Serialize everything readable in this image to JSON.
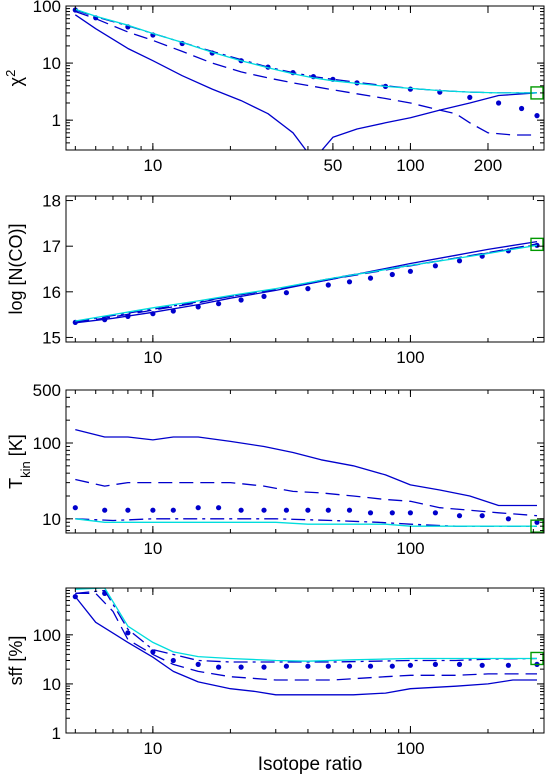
{
  "chart_data": [
    {
      "type": "line",
      "ylabel": "χ²",
      "xscale": "log",
      "yscale": "log",
      "xlim": [
        4.6,
        330
      ],
      "ylim": [
        0.3,
        100
      ],
      "xticks": [
        10,
        50,
        100,
        200
      ],
      "xtick_labels": [
        "10",
        "50",
        "100",
        "200"
      ],
      "yticks": [
        1,
        10,
        100
      ],
      "ytick_labels": [
        "1",
        "10",
        "100"
      ],
      "series": [
        {
          "style": "solid",
          "color": "#0000cc",
          "x": [
            5,
            6,
            8,
            10,
            13,
            17,
            22,
            28,
            35,
            42,
            50,
            62,
            80,
            100,
            130,
            170,
            220,
            310
          ],
          "y": [
            70,
            40,
            18,
            11,
            6,
            3.5,
            2.2,
            1.3,
            0.6,
            0.2,
            0.5,
            0.7,
            0.9,
            1.1,
            1.5,
            2.0,
            2.7,
            3.0
          ]
        },
        {
          "style": "dashed",
          "color": "#0000cc",
          "x": [
            5,
            6,
            8,
            10,
            13,
            17,
            22,
            28,
            35,
            42,
            50,
            62,
            80,
            100,
            130,
            150,
            170,
            200,
            250,
            310
          ],
          "y": [
            80,
            60,
            35,
            25,
            16,
            10,
            7,
            5.5,
            4.5,
            3.9,
            3.4,
            2.9,
            2.4,
            2.0,
            1.5,
            1.3,
            0.9,
            0.6,
            0.55,
            0.55
          ]
        },
        {
          "style": "dotted",
          "color": "#0000cc",
          "x": [
            5,
            6,
            8,
            10,
            13,
            17,
            22,
            28,
            35,
            42,
            50,
            62,
            80,
            100,
            130,
            170,
            220,
            270,
            310
          ],
          "y": [
            85,
            62,
            43,
            31,
            22,
            15,
            11,
            8.5,
            6.8,
            5.8,
            5.2,
            4.5,
            3.9,
            3.5,
            3.1,
            2.5,
            2.0,
            1.6,
            1.2
          ]
        },
        {
          "style": "dashdot",
          "color": "#0000cc",
          "x": [
            5,
            6,
            8,
            10,
            13,
            17,
            22,
            28,
            35,
            42,
            50,
            62,
            80,
            100,
            130,
            170,
            220,
            310
          ],
          "y": [
            85,
            65,
            45,
            33,
            23,
            16,
            11.5,
            8.5,
            6.8,
            5.8,
            5.2,
            4.6,
            4.0,
            3.6,
            3.3,
            3.1,
            3.0,
            3.0
          ]
        },
        {
          "style": "solid",
          "color": "#00dddd",
          "x": [
            5,
            6,
            8,
            10,
            13,
            17,
            22,
            28,
            35,
            42,
            50,
            62,
            80,
            100,
            130,
            170,
            220,
            310
          ],
          "y": [
            88,
            66,
            46,
            33,
            23,
            15.5,
            11,
            8.3,
            6.5,
            5.5,
            4.9,
            4.4,
            3.9,
            3.6,
            3.3,
            3.1,
            3.0,
            3.0
          ]
        }
      ],
      "markers": [
        {
          "x": 310,
          "y": 3.0,
          "shape": "square",
          "color": "#009900"
        }
      ]
    },
    {
      "type": "line",
      "ylabel": "log [N(CO)]",
      "xscale": "log",
      "yscale": "linear",
      "xlim": [
        4.6,
        330
      ],
      "ylim": [
        14.9,
        18.1
      ],
      "xticks": [
        10,
        100
      ],
      "xtick_labels": [
        "10",
        "100"
      ],
      "yticks": [
        15,
        16,
        17,
        18
      ],
      "ytick_labels": [
        "15",
        "16",
        "17",
        "18"
      ],
      "series": [
        {
          "style": "solid",
          "color": "#0000cc",
          "x": [
            5,
            7,
            10,
            15,
            20,
            30,
            50,
            75,
            100,
            150,
            200,
            310
          ],
          "y": [
            15.32,
            15.42,
            15.55,
            15.72,
            15.86,
            16.03,
            16.28,
            16.48,
            16.62,
            16.8,
            16.93,
            17.1
          ]
        },
        {
          "style": "dashed",
          "color": "#0000cc",
          "x": [
            5,
            7,
            10,
            15,
            20,
            30,
            50,
            75,
            100,
            150,
            200,
            310
          ],
          "y": [
            15.33,
            15.45,
            15.6,
            15.76,
            15.9,
            16.05,
            16.28,
            16.45,
            16.57,
            16.74,
            16.86,
            17.05
          ]
        },
        {
          "style": "dotted",
          "color": "#0000cc",
          "x": [
            5,
            6.5,
            8,
            10,
            12,
            15,
            18,
            22,
            27,
            33,
            40,
            48,
            58,
            70,
            85,
            100,
            125,
            155,
            190,
            240,
            310
          ],
          "y": [
            15.33,
            15.39,
            15.46,
            15.52,
            15.58,
            15.67,
            15.74,
            15.82,
            15.9,
            15.98,
            16.07,
            16.15,
            16.22,
            16.3,
            16.38,
            16.45,
            16.57,
            16.68,
            16.78,
            16.9,
            17.02
          ]
        },
        {
          "style": "dashdot",
          "color": "#0000cc",
          "x": [
            5,
            7,
            10,
            15,
            20,
            30,
            50,
            75,
            100,
            150,
            200,
            310
          ],
          "y": [
            15.35,
            15.48,
            15.62,
            15.78,
            15.9,
            16.06,
            16.3,
            16.47,
            16.58,
            16.74,
            16.85,
            17.03
          ]
        },
        {
          "style": "solid",
          "color": "#00dddd",
          "x": [
            5,
            7,
            10,
            15,
            20,
            30,
            50,
            75,
            100,
            150,
            200,
            310
          ],
          "y": [
            15.36,
            15.5,
            15.65,
            15.8,
            15.92,
            16.07,
            16.3,
            16.46,
            16.58,
            16.73,
            16.84,
            17.02
          ]
        }
      ],
      "markers": [
        {
          "x": 310,
          "y": 17.04,
          "shape": "square",
          "color": "#009900"
        }
      ]
    },
    {
      "type": "line",
      "ylabel": "T_kin [K]",
      "xscale": "log",
      "yscale": "log",
      "xlim": [
        4.6,
        330
      ],
      "ylim": [
        6.5,
        500
      ],
      "xticks": [
        10,
        100
      ],
      "xtick_labels": [
        "10",
        "100"
      ],
      "yticks": [
        10,
        100,
        500
      ],
      "ytick_labels": [
        "10",
        "100",
        "500"
      ],
      "series": [
        {
          "style": "solid",
          "color": "#0000cc",
          "x": [
            5,
            6.5,
            8,
            10,
            12,
            15,
            20,
            27,
            35,
            45,
            60,
            80,
            100,
            130,
            170,
            220,
            310
          ],
          "y": [
            150,
            120,
            120,
            110,
            120,
            120,
            105,
            90,
            75,
            60,
            50,
            38,
            28,
            24,
            20,
            15,
            15
          ]
        },
        {
          "style": "dashed",
          "color": "#0000cc",
          "x": [
            5,
            6.5,
            8,
            10,
            15,
            20,
            27,
            35,
            45,
            60,
            80,
            100,
            130,
            170,
            220,
            310
          ],
          "y": [
            33,
            27,
            30,
            30,
            30,
            30,
            27,
            23,
            22,
            20,
            18,
            17,
            14,
            13,
            12,
            11
          ]
        },
        {
          "style": "dotted",
          "color": "#0000cc",
          "x": [
            5,
            6.5,
            8,
            10,
            12,
            15,
            18,
            22,
            27,
            33,
            40,
            48,
            58,
            70,
            85,
            100,
            125,
            155,
            190,
            240,
            310
          ],
          "y": [
            14,
            13,
            13,
            13,
            13,
            14,
            14,
            13,
            13,
            13,
            13,
            13,
            13,
            12,
            12,
            12,
            12,
            11,
            11,
            10,
            9
          ]
        },
        {
          "style": "dashdot",
          "color": "#0000cc",
          "x": [
            5,
            7,
            10,
            15,
            20,
            30,
            50,
            75,
            100,
            150,
            200,
            310
          ],
          "y": [
            10,
            9.5,
            10,
            10,
            10,
            10,
            9.5,
            9,
            8.5,
            8,
            8,
            8
          ]
        },
        {
          "style": "solid",
          "color": "#00dddd",
          "x": [
            5,
            6.5,
            8,
            10,
            15,
            20,
            30,
            40,
            50,
            80,
            100,
            150,
            200,
            310
          ],
          "y": [
            10,
            9,
            9,
            9,
            9,
            9,
            9,
            8.5,
            8.5,
            8.5,
            8,
            8,
            8,
            8
          ]
        }
      ],
      "markers": [
        {
          "x": 310,
          "y": 8,
          "shape": "square",
          "color": "#009900"
        }
      ]
    },
    {
      "type": "line",
      "xlabel": "Isotope ratio",
      "ylabel": "sff [%]",
      "xscale": "log",
      "yscale": "log",
      "xlim": [
        4.6,
        330
      ],
      "ylim": [
        1,
        900
      ],
      "xticks": [
        10,
        100
      ],
      "xtick_labels": [
        "10",
        "100"
      ],
      "yticks": [
        1,
        10,
        100
      ],
      "ytick_labels": [
        "1",
        "10",
        "100"
      ],
      "series": [
        {
          "style": "solid",
          "color": "#0000cc",
          "x": [
            5,
            6,
            8,
            10,
            12,
            15,
            20,
            25,
            30,
            40,
            50,
            60,
            80,
            100,
            150,
            200,
            250,
            310
          ],
          "y": [
            600,
            180,
            70,
            35,
            18,
            11,
            8,
            7,
            6,
            6,
            6,
            6,
            6.5,
            8,
            9,
            10,
            12,
            12
          ]
        },
        {
          "style": "dashed",
          "color": "#0000cc",
          "x": [
            5,
            6,
            7,
            8,
            10,
            12,
            15,
            20,
            30,
            50,
            80,
            100,
            150,
            200,
            310
          ],
          "y": [
            700,
            700,
            300,
            80,
            40,
            25,
            18,
            14,
            12,
            12,
            14,
            15,
            15,
            16,
            16
          ]
        },
        {
          "style": "dotted",
          "color": "#0000cc",
          "x": [
            5,
            6.5,
            8,
            10,
            12,
            15,
            18,
            22,
            27,
            33,
            40,
            48,
            58,
            70,
            85,
            100,
            125,
            155,
            190,
            240,
            310
          ],
          "y": [
            600,
            700,
            110,
            45,
            30,
            25,
            22,
            22,
            22,
            23,
            23,
            23,
            23,
            23,
            23,
            24,
            25,
            25,
            24,
            24,
            25
          ]
        },
        {
          "style": "dashdot",
          "color": "#0000cc",
          "x": [
            5,
            6.5,
            8,
            10,
            15,
            20,
            30,
            50,
            100,
            150,
            200,
            310
          ],
          "y": [
            700,
            800,
            130,
            50,
            30,
            28,
            28,
            28,
            30,
            30,
            32,
            33
          ]
        },
        {
          "style": "solid",
          "color": "#00dddd",
          "x": [
            5,
            6.5,
            8,
            10,
            12,
            15,
            20,
            30,
            40,
            60,
            100,
            150,
            200,
            310
          ],
          "y": [
            850,
            900,
            150,
            70,
            45,
            36,
            33,
            30,
            29,
            31,
            33,
            33,
            33,
            33
          ]
        }
      ],
      "markers": [
        {
          "x": 310,
          "y": 33,
          "shape": "square",
          "color": "#009900"
        }
      ]
    }
  ]
}
